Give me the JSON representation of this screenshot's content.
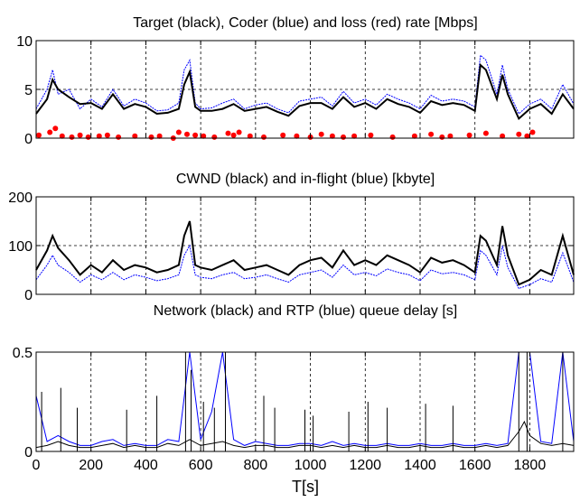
{
  "chart_data": [
    {
      "type": "line",
      "title": "Target (black), Coder (blue) and loss (red) rate [Mbps]",
      "xlim": [
        0,
        1960
      ],
      "ylim": [
        0,
        10
      ],
      "yticks": [
        0,
        5,
        10
      ],
      "xticks": [
        0,
        200,
        400,
        600,
        800,
        1000,
        1200,
        1400,
        1600,
        1800
      ],
      "grid": true,
      "series": [],
      "x": [
        0,
        40,
        60,
        80,
        120,
        160,
        200,
        240,
        280,
        320,
        360,
        400,
        440,
        480,
        520,
        540,
        560,
        580,
        600,
        640,
        680,
        720,
        760,
        800,
        840,
        880,
        920,
        960,
        1000,
        1040,
        1080,
        1120,
        1160,
        1200,
        1240,
        1280,
        1320,
        1360,
        1400,
        1440,
        1480,
        1520,
        1560,
        1600,
        1620,
        1640,
        1680,
        1700,
        1720,
        1760,
        1800,
        1840,
        1880,
        1920,
        1960
      ],
      "target": [
        2.5,
        4.0,
        6.0,
        5.0,
        4.2,
        3.5,
        3.6,
        3.0,
        4.5,
        3.0,
        3.5,
        3.2,
        2.5,
        2.6,
        3.0,
        5.5,
        6.8,
        3.2,
        2.8,
        2.8,
        3.0,
        3.5,
        2.8,
        3.0,
        3.2,
        2.7,
        2.3,
        3.3,
        3.6,
        3.6,
        3.0,
        4.2,
        3.2,
        3.6,
        3.0,
        4.0,
        3.5,
        3.2,
        2.6,
        3.8,
        3.4,
        3.6,
        3.4,
        2.8,
        7.5,
        7.0,
        4.0,
        6.5,
        4.5,
        2.0,
        3.0,
        3.5,
        2.5,
        4.5,
        3.0
      ],
      "coder": [
        3.0,
        5.0,
        7.0,
        4.5,
        5.0,
        3.0,
        4.0,
        3.2,
        5.0,
        3.3,
        4.0,
        3.6,
        2.8,
        2.9,
        3.6,
        7.0,
        8.0,
        3.6,
        3.0,
        3.1,
        3.6,
        4.0,
        3.0,
        3.4,
        3.6,
        3.0,
        2.6,
        3.8,
        4.0,
        4.2,
        3.3,
        4.8,
        3.6,
        4.0,
        3.4,
        4.5,
        4.0,
        3.6,
        3.0,
        4.4,
        3.8,
        4.0,
        3.8,
        3.2,
        8.5,
        8.0,
        4.5,
        7.5,
        5.0,
        2.5,
        3.5,
        4.0,
        3.0,
        5.5,
        3.5
      ],
      "loss_x": [
        10,
        50,
        70,
        95,
        130,
        160,
        190,
        230,
        260,
        300,
        360,
        420,
        450,
        500,
        520,
        550,
        580,
        610,
        650,
        700,
        720,
        740,
        780,
        830,
        900,
        950,
        1000,
        1040,
        1080,
        1120,
        1160,
        1220,
        1300,
        1380,
        1440,
        1480,
        1510,
        1580,
        1640,
        1700,
        1760,
        1790,
        1810
      ],
      "loss_y": [
        0.3,
        0.6,
        1.0,
        0.2,
        0.1,
        0.3,
        0.1,
        0.2,
        0.3,
        0.1,
        0.2,
        0.1,
        0.2,
        0.0,
        0.6,
        0.4,
        0.3,
        0.2,
        0.1,
        0.5,
        0.3,
        0.6,
        0.2,
        0.1,
        0.3,
        0.2,
        0.1,
        0.4,
        0.2,
        0.1,
        0.2,
        0.3,
        0.1,
        0.2,
        0.4,
        0.1,
        0.2,
        0.3,
        0.5,
        0.2,
        0.4,
        0.2,
        0.6
      ]
    },
    {
      "type": "line",
      "title": "CWND (black) and in-flight (blue) [kbyte]",
      "xlim": [
        0,
        1960
      ],
      "ylim": [
        0,
        200
      ],
      "yticks": [
        0,
        100,
        200
      ],
      "xticks": [
        0,
        200,
        400,
        600,
        800,
        1000,
        1200,
        1400,
        1600,
        1800
      ],
      "grid": true,
      "series": [],
      "x": [
        0,
        40,
        60,
        80,
        120,
        160,
        200,
        240,
        280,
        320,
        360,
        400,
        440,
        480,
        520,
        540,
        560,
        580,
        600,
        640,
        680,
        720,
        760,
        800,
        840,
        880,
        920,
        960,
        1000,
        1040,
        1080,
        1120,
        1160,
        1200,
        1240,
        1280,
        1320,
        1360,
        1400,
        1440,
        1480,
        1520,
        1560,
        1600,
        1620,
        1640,
        1680,
        1700,
        1720,
        1760,
        1800,
        1840,
        1880,
        1920,
        1960
      ],
      "cwnd": [
        50,
        90,
        120,
        95,
        70,
        40,
        60,
        45,
        70,
        50,
        60,
        55,
        45,
        50,
        60,
        120,
        150,
        60,
        55,
        50,
        60,
        70,
        50,
        55,
        60,
        50,
        40,
        60,
        70,
        75,
        55,
        90,
        60,
        70,
        60,
        80,
        70,
        60,
        45,
        75,
        65,
        70,
        60,
        45,
        120,
        110,
        60,
        140,
        80,
        20,
        30,
        50,
        40,
        120,
        40
      ],
      "inflight": [
        30,
        60,
        80,
        60,
        45,
        25,
        40,
        30,
        45,
        30,
        40,
        35,
        28,
        32,
        40,
        80,
        100,
        40,
        35,
        32,
        40,
        45,
        32,
        35,
        40,
        32,
        25,
        40,
        45,
        50,
        35,
        60,
        40,
        45,
        38,
        52,
        45,
        40,
        28,
        50,
        42,
        45,
        40,
        30,
        90,
        80,
        40,
        100,
        55,
        12,
        20,
        32,
        25,
        85,
        25
      ]
    },
    {
      "type": "line",
      "title": "Network (black) and RTP (blue) queue delay [s]",
      "xlim": [
        0,
        1960
      ],
      "ylim": [
        0,
        0.5
      ],
      "yticks": [
        0,
        0.5
      ],
      "xticks": [
        0,
        200,
        400,
        600,
        800,
        1000,
        1200,
        1400,
        1600,
        1800
      ],
      "xtick_labels": [
        "0",
        "200",
        "400",
        "600",
        "800",
        "1000",
        "1200",
        "1400",
        "1600",
        "1800"
      ],
      "xlabel": "T[s]",
      "grid": true,
      "series": [],
      "x": [
        0,
        40,
        80,
        120,
        160,
        200,
        240,
        280,
        320,
        360,
        400,
        440,
        480,
        520,
        560,
        600,
        640,
        680,
        720,
        760,
        800,
        840,
        880,
        920,
        960,
        1000,
        1040,
        1080,
        1120,
        1160,
        1200,
        1240,
        1280,
        1320,
        1360,
        1400,
        1440,
        1480,
        1520,
        1560,
        1600,
        1640,
        1680,
        1720,
        1760,
        1780,
        1800,
        1840,
        1880,
        1920,
        1960
      ],
      "network": [
        0.02,
        0.03,
        0.05,
        0.03,
        0.02,
        0.02,
        0.03,
        0.04,
        0.02,
        0.03,
        0.02,
        0.02,
        0.04,
        0.03,
        0.06,
        0.03,
        0.04,
        0.05,
        0.03,
        0.02,
        0.03,
        0.03,
        0.02,
        0.02,
        0.03,
        0.03,
        0.02,
        0.03,
        0.02,
        0.03,
        0.02,
        0.02,
        0.03,
        0.02,
        0.02,
        0.03,
        0.02,
        0.02,
        0.03,
        0.02,
        0.02,
        0.03,
        0.02,
        0.03,
        0.1,
        0.15,
        0.08,
        0.04,
        0.03,
        0.04,
        0.03
      ],
      "rtp": [
        0.28,
        0.05,
        0.08,
        0.05,
        0.03,
        0.03,
        0.05,
        0.06,
        0.03,
        0.04,
        0.03,
        0.03,
        0.06,
        0.05,
        0.5,
        0.06,
        0.2,
        0.5,
        0.06,
        0.03,
        0.05,
        0.04,
        0.03,
        0.03,
        0.04,
        0.04,
        0.03,
        0.05,
        0.03,
        0.04,
        0.03,
        0.03,
        0.04,
        0.03,
        0.03,
        0.04,
        0.03,
        0.03,
        0.04,
        0.03,
        0.03,
        0.04,
        0.03,
        0.04,
        0.5,
        0.5,
        0.5,
        0.05,
        0.04,
        0.5,
        0.05
      ],
      "spikes_x": [
        20,
        90,
        150,
        330,
        440,
        545,
        565,
        610,
        650,
        690,
        830,
        870,
        980,
        1010,
        1140,
        1210,
        1280,
        1420,
        1520,
        1760,
        1790,
        1920
      ],
      "spikes_y": [
        0.3,
        0.32,
        0.22,
        0.21,
        0.28,
        0.5,
        0.41,
        0.25,
        0.22,
        0.5,
        0.28,
        0.22,
        0.21,
        0.18,
        0.2,
        0.25,
        0.22,
        0.24,
        0.23,
        0.5,
        0.5,
        0.5
      ]
    }
  ],
  "colors": {
    "target": "#000000",
    "coder": "#0000ff",
    "loss": "#ff0000",
    "grid": "#000000",
    "axes": "#000000"
  }
}
